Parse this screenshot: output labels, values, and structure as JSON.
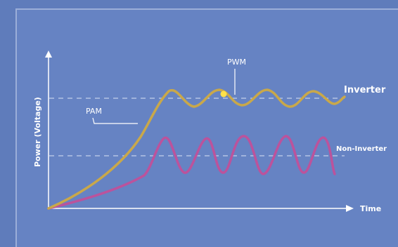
{
  "diagram": {
    "y_axis_label": "Power (Voltage)",
    "x_axis_label": "Time",
    "labels": {
      "pam": "PAM",
      "pwm": "PWM",
      "inverter": "Inverter",
      "non_inverter": "Non-Inverter"
    }
  },
  "colors": {
    "background": "#5f7cbb",
    "axis": "#ffffff",
    "inverter_line": "#c9a84a",
    "non_inverter_line": "#c0509a",
    "dashed_guide": "#c8d4ee",
    "pwm_marker": "#ffe14a"
  }
}
